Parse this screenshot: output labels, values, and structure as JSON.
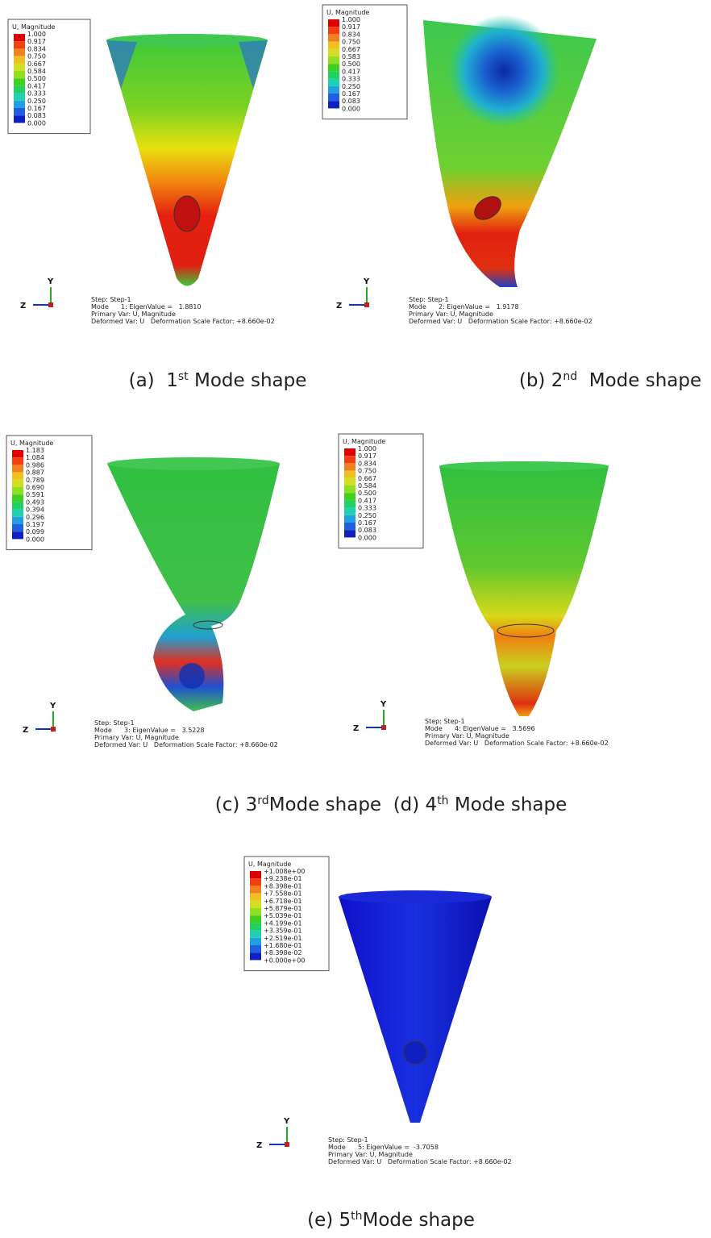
{
  "panels": [
    {
      "legend_title": "U, Magnitude",
      "legend_values": [
        "1.000",
        "0.917",
        "0.834",
        "0.750",
        "0.667",
        "0.584",
        "0.500",
        "0.417",
        "0.333",
        "0.250",
        "0.167",
        "0.083",
        "0.000"
      ],
      "triad": {
        "y": "Y",
        "z": "Z"
      },
      "info": [
        "Step: Step-1",
        "Mode      1: EigenValue =   1.8810",
        "Primary Var: U, Magnitude",
        "Deformed Var: U   Deformation Scale Factor: +8.660e-02"
      ]
    },
    {
      "legend_title": "U, Magnitude",
      "legend_values": [
        "1.000",
        "0.917",
        "0.834",
        "0.750",
        "0.667",
        "0.583",
        "0.500",
        "0.417",
        "0.333",
        "0.250",
        "0.167",
        "0.083",
        "0.000"
      ],
      "triad": {
        "y": "Y",
        "z": "Z"
      },
      "info": [
        "Step: Step-1",
        "Mode      2: EigenValue =   1.9178",
        "Primary Var: U, Magnitude",
        "Deformed Var: U   Deformation Scale Factor: +8.660e-02"
      ]
    },
    {
      "legend_title": "U, Magnitude",
      "legend_values": [
        "1.183",
        "1.084",
        "0.986",
        "0.887",
        "0.789",
        "0.690",
        "0.591",
        "0.493",
        "0.394",
        "0.296",
        "0.197",
        "0.099",
        "0.000"
      ],
      "triad": {
        "y": "Y",
        "z": "Z"
      },
      "info": [
        "Step: Step-1",
        "Mode      3: EigenValue =   3.5228",
        "Primary Var: U, Magnitude",
        "Deformed Var: U   Deformation Scale Factor: +8.660e-02"
      ]
    },
    {
      "legend_title": "U, Magnitude",
      "legend_values": [
        "1.000",
        "0.917",
        "0.834",
        "0.750",
        "0.667",
        "0.584",
        "0.500",
        "0.417",
        "0.333",
        "0.250",
        "0.167",
        "0.083",
        "0.000"
      ],
      "triad": {
        "y": "Y",
        "z": "Z"
      },
      "info": [
        "Step: Step-1",
        "Mode      4: EigenValue =   3.5696",
        "Primary Var: U, Magnitude",
        "Deformed Var: U   Deformation Scale Factor: +8.660e-02"
      ]
    },
    {
      "legend_title": "U, Magnitude",
      "legend_values": [
        "+1.008e+00",
        "+9.238e-01",
        "+8.398e-01",
        "+7.558e-01",
        "+6.718e-01",
        "+5.879e-01",
        "+5.039e-01",
        "+4.199e-01",
        "+3.359e-01",
        "+2.519e-01",
        "+1.680e-01",
        "+8.398e-02",
        "+0.000e+00"
      ],
      "triad": {
        "y": "Y",
        "z": "Z"
      },
      "info": [
        "Step: Step-1",
        "Mode      5: EigenValue =  -3.7058",
        "Primary Var: U, Magnitude",
        "Deformed Var: U   Deformation Scale Factor: +8.660e-02"
      ]
    }
  ],
  "captions": [
    {
      "segments": [
        {
          "text": "(a)  1"
        },
        {
          "text": "st",
          "sup": true
        },
        {
          "text": " Mode shape"
        }
      ]
    },
    {
      "segments": [
        {
          "text": "(b) 2"
        },
        {
          "text": "nd",
          "sup": true
        },
        {
          "text": "  Mode shape"
        }
      ]
    },
    {
      "segments": [
        {
          "text": "(c) 3"
        },
        {
          "text": "rd",
          "sup": true
        },
        {
          "text": "Mode shape  (d) 4"
        },
        {
          "text": "th",
          "sup": true
        },
        {
          "text": " Mode shape"
        }
      ]
    },
    {
      "segments": [
        {
          "text": "(e) 5"
        },
        {
          "text": "th",
          "sup": true
        },
        {
          "text": "Mode shape"
        }
      ]
    }
  ]
}
